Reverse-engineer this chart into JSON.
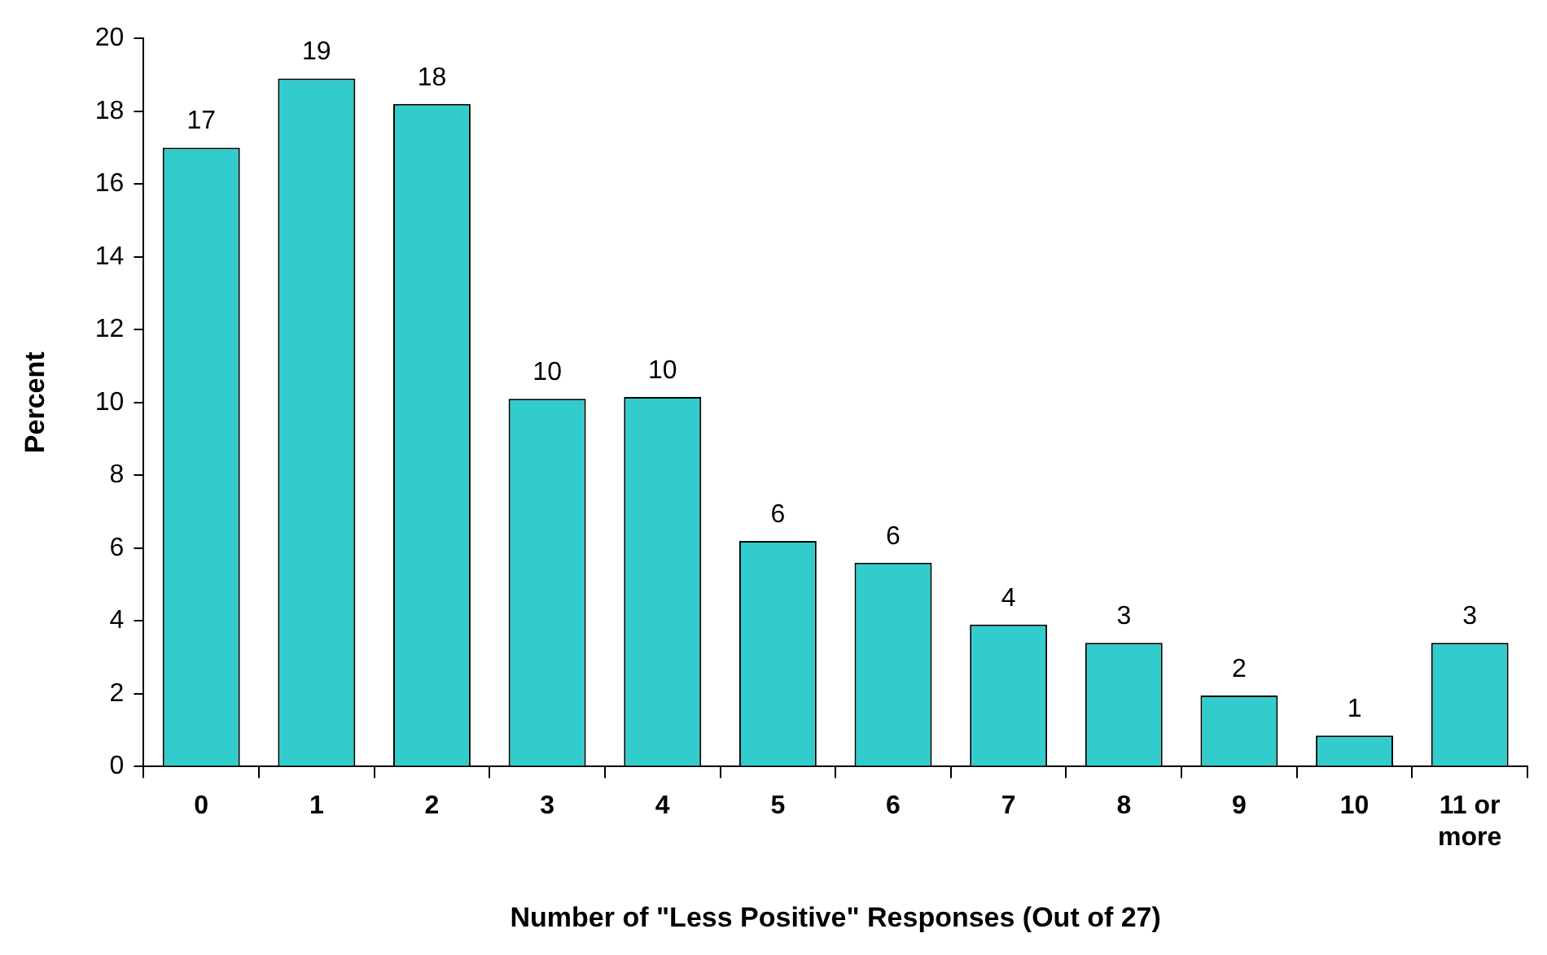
{
  "chart_data": {
    "type": "bar",
    "xlabel": "Number of \"Less Positive\" Responses (Out of 27)",
    "ylabel": "Percent",
    "categories": [
      "0",
      "1",
      "2",
      "3",
      "4",
      "5",
      "6",
      "7",
      "8",
      "9",
      "10",
      "11 or more"
    ],
    "values": [
      17.0,
      18.9,
      18.2,
      10.1,
      10.15,
      6.2,
      5.6,
      3.9,
      3.4,
      1.95,
      0.85,
      3.4
    ],
    "value_labels": [
      "17",
      "19",
      "18",
      "10",
      "10",
      "6",
      "6",
      "4",
      "3",
      "2",
      "1",
      "3"
    ],
    "color": "#33cccc",
    "ylim": [
      0,
      20
    ],
    "yticks": [
      0,
      2,
      4,
      6,
      8,
      10,
      12,
      14,
      16,
      18,
      20
    ],
    "grid": false,
    "legend": false
  }
}
